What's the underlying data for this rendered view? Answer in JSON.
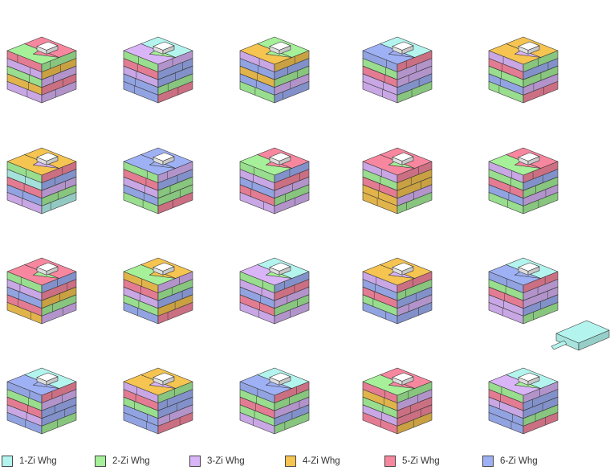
{
  "legend": [
    {
      "id": "1zi",
      "label": "1-Zi Whg",
      "color": "#b3f5ee"
    },
    {
      "id": "2zi",
      "label": "2-Zi Whg",
      "color": "#a6f09a"
    },
    {
      "id": "3zi",
      "label": "3-Zi Whg",
      "color": "#d9b5f8"
    },
    {
      "id": "4zi",
      "label": "4-Zi Whg",
      "color": "#f5c451"
    },
    {
      "id": "5zi",
      "label": "5-Zi Whg",
      "color": "#f7879f"
    },
    {
      "id": "6zi",
      "label": "6-Zi Whg",
      "color": "#9fb1f5"
    }
  ],
  "variants": [
    {
      "roof": [
        "2zi",
        "5zi",
        "5zi"
      ],
      "bands": [
        "5zi",
        "3zi",
        "2zi",
        "4zi",
        "3zi"
      ]
    },
    {
      "roof": [
        "3zi",
        "1zi",
        "2zi"
      ],
      "bands": [
        "2zi",
        "5zi",
        "3zi",
        "6zi",
        "6zi"
      ]
    },
    {
      "roof": [
        "4zi",
        "2zi",
        "2zi"
      ],
      "bands": [
        "3zi",
        "6zi",
        "4zi",
        "6zi",
        "2zi"
      ]
    },
    {
      "roof": [
        "6zi",
        "1zi",
        "6zi"
      ],
      "bands": [
        "6zi",
        "2zi",
        "5zi",
        "3zi",
        "3zi"
      ]
    },
    {
      "roof": [
        "4zi",
        "4zi",
        "3zi"
      ],
      "bands": [
        "3zi",
        "5zi",
        "2zi",
        "6zi",
        "2zi"
      ]
    },
    {
      "roof": [
        "4zi",
        "4zi",
        "3zi"
      ],
      "bands": [
        "2zi",
        "1zi",
        "5zi",
        "6zi",
        "3zi"
      ]
    },
    {
      "roof": [
        "6zi",
        "6zi",
        "6zi"
      ],
      "bands": [
        "2zi",
        "5zi",
        "3zi",
        "6zi",
        "2zi"
      ]
    },
    {
      "roof": [
        "2zi",
        "5zi",
        "5zi"
      ],
      "bands": [
        "2zi",
        "3zi",
        "6zi",
        "5zi",
        "3zi"
      ]
    },
    {
      "roof": [
        "5zi",
        "5zi",
        "2zi"
      ],
      "bands": [
        "3zi",
        "2zi",
        "5zi",
        "4zi",
        "4zi"
      ]
    },
    {
      "roof": [
        "2zi",
        "5zi",
        "5zi"
      ],
      "bands": [
        "3zi",
        "2zi",
        "5zi",
        "6zi",
        "2zi"
      ]
    },
    {
      "roof": [
        "5zi",
        "5zi",
        "2zi"
      ],
      "bands": [
        "2zi",
        "3zi",
        "6zi",
        "5zi",
        "4zi"
      ]
    },
    {
      "roof": [
        "2zi",
        "4zi",
        "4zi"
      ],
      "bands": [
        "4zi",
        "5zi",
        "3zi",
        "2zi",
        "6zi"
      ]
    },
    {
      "roof": [
        "3zi",
        "1zi",
        "2zi"
      ],
      "bands": [
        "2zi",
        "3zi",
        "6zi",
        "5zi",
        "3zi"
      ]
    },
    {
      "roof": [
        "4zi",
        "4zi",
        "3zi"
      ],
      "bands": [
        "3zi",
        "6zi",
        "5zi",
        "2zi",
        "6zi"
      ]
    },
    {
      "roof": [
        "6zi",
        "1zi",
        "6zi"
      ],
      "bands": [
        "6zi",
        "2zi",
        "5zi",
        "3zi",
        "3zi"
      ]
    },
    {
      "roof": [
        "6zi",
        "1zi",
        "6zi"
      ],
      "bands": [
        "6zi",
        "2zi",
        "5zi",
        "3zi",
        "6zi"
      ]
    },
    {
      "roof": [
        "4zi",
        "4zi",
        "3zi"
      ],
      "bands": [
        "3zi",
        "5zi",
        "2zi",
        "6zi",
        "6zi"
      ]
    },
    {
      "roof": [
        "6zi",
        "1zi",
        "6zi"
      ],
      "bands": [
        "6zi",
        "2zi",
        "5zi",
        "2zi",
        "3zi"
      ]
    },
    {
      "roof": [
        "2zi",
        "5zi",
        "5zi"
      ],
      "bands": [
        "5zi",
        "4zi",
        "2zi",
        "3zi",
        "5zi"
      ]
    },
    {
      "roof": [
        "3zi",
        "1zi",
        "2zi"
      ],
      "bands": [
        "2zi",
        "5zi",
        "3zi",
        "6zi",
        "6zi"
      ],
      "annex": "1zi"
    }
  ]
}
